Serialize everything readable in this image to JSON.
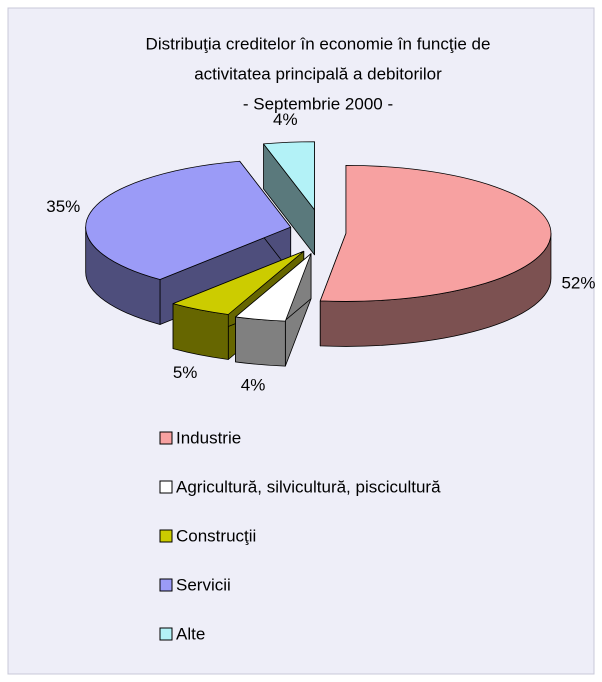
{
  "chart_data": {
    "type": "pie3d",
    "title": [
      "Distribuţia creditelor în economie în funcţie de",
      "activitatea principală a debitorilor",
      "- Septembrie 2000 -"
    ],
    "categories": [
      "Industrie",
      "Agricultură, silvicultură, piscicultură",
      "Construcţii",
      "Servicii",
      "Alte"
    ],
    "values": [
      52,
      4,
      5,
      35,
      4
    ],
    "value_labels": [
      "52%",
      "4%",
      "5%",
      "35%",
      "4%"
    ],
    "colors": [
      "#f7a1a1",
      "#ffffff",
      "#cccc00",
      "#9b9bf7",
      "#b3f2f7"
    ],
    "legend": "bottom"
  }
}
